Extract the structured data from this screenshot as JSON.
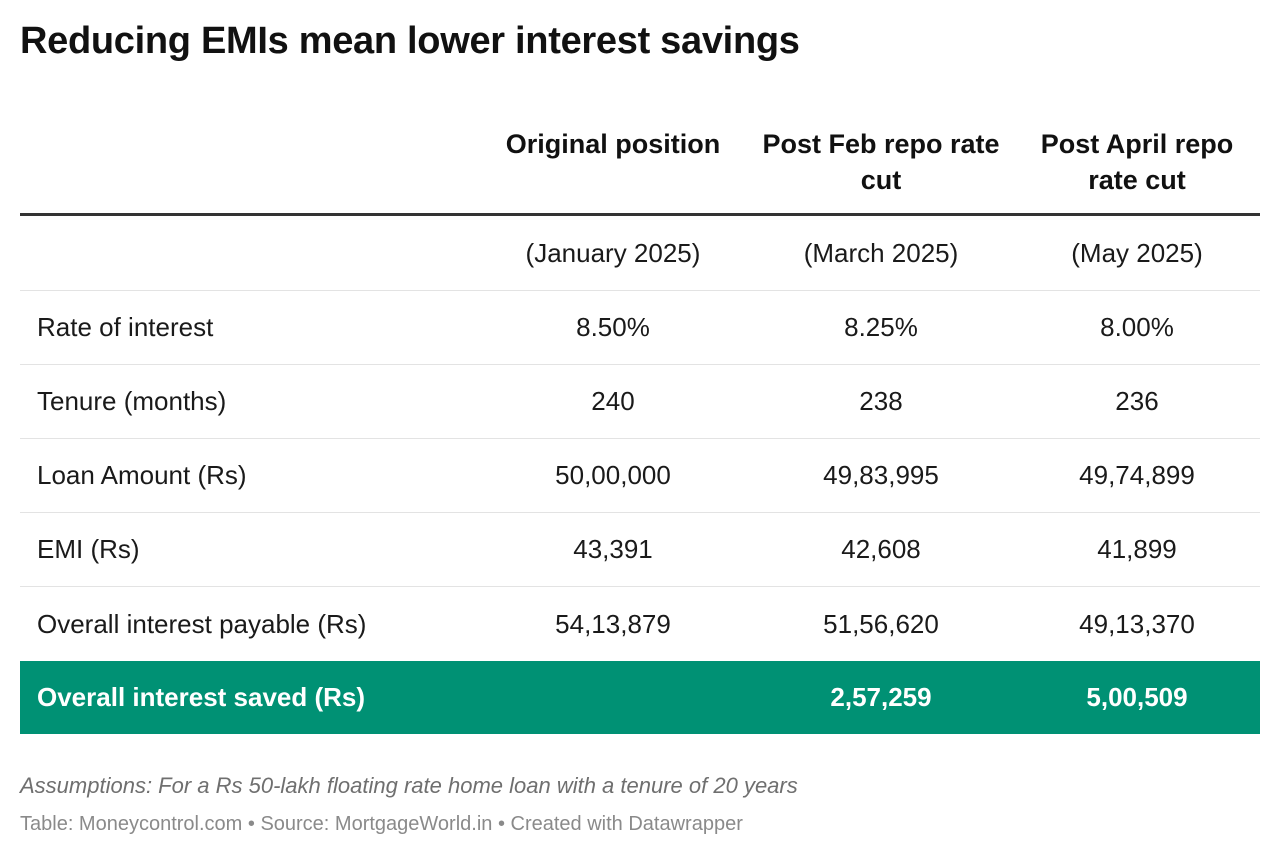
{
  "title": "Reducing EMIs mean lower interest savings",
  "chart_data": {
    "type": "table",
    "title": "Reducing EMIs mean lower interest savings",
    "columns": [
      "",
      "Original position",
      "Post Feb repo rate cut",
      "Post April repo rate cut"
    ],
    "rows": [
      [
        "",
        "(January 2025)",
        "(March 2025)",
        "(May 2025)"
      ],
      [
        "Rate of interest",
        "8.50%",
        "8.25%",
        "8.00%"
      ],
      [
        "Tenure (months)",
        "240",
        "238",
        "236"
      ],
      [
        "Loan Amount (Rs)",
        "50,00,000",
        "49,83,995",
        "49,74,899"
      ],
      [
        "EMI (Rs)",
        "43,391",
        "42,608",
        "41,899"
      ],
      [
        "Overall interest payable (Rs)",
        "54,13,879",
        "51,56,620",
        "49,13,370"
      ]
    ],
    "highlight_row": [
      "Overall interest saved (Rs)",
      "",
      "2,57,259",
      "5,00,509"
    ],
    "highlight_color": "#009174"
  },
  "notes": "Assumptions: For a Rs 50-lakh floating rate home loan with a tenure of 20 years",
  "footer": "Table: Moneycontrol.com • Source: MortgageWorld.in • Created with Datawrapper"
}
